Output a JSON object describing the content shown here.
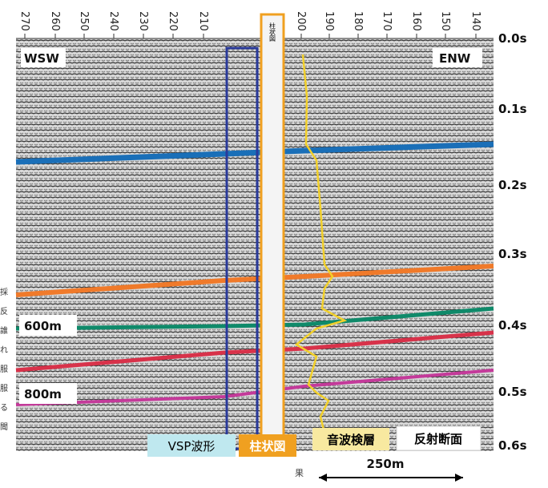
{
  "top_axis": {
    "labels": [
      "270",
      "260",
      "250",
      "240",
      "230",
      "220",
      "210",
      "200",
      "190",
      "180",
      "170",
      "160",
      "150",
      "140"
    ]
  },
  "time_axis": {
    "labels": [
      "0.0s",
      "0.1s",
      "0.2s",
      "0.3s",
      "0.4s",
      "0.5s",
      "0.6s"
    ]
  },
  "directions": {
    "left": "WSW",
    "right": "ENW"
  },
  "depth_markers": [
    "600m",
    "800m"
  ],
  "column_header": "柱状図",
  "legend": {
    "vsp": "VSP波形",
    "column": "柱状図",
    "sonic": "音波検層",
    "reflection": "反射断面"
  },
  "scale_bar": "250m",
  "bottom_mark": "果",
  "side_text": [
    "採",
    "反",
    "誰",
    "れ",
    "服",
    "服",
    "る",
    "聞"
  ]
}
